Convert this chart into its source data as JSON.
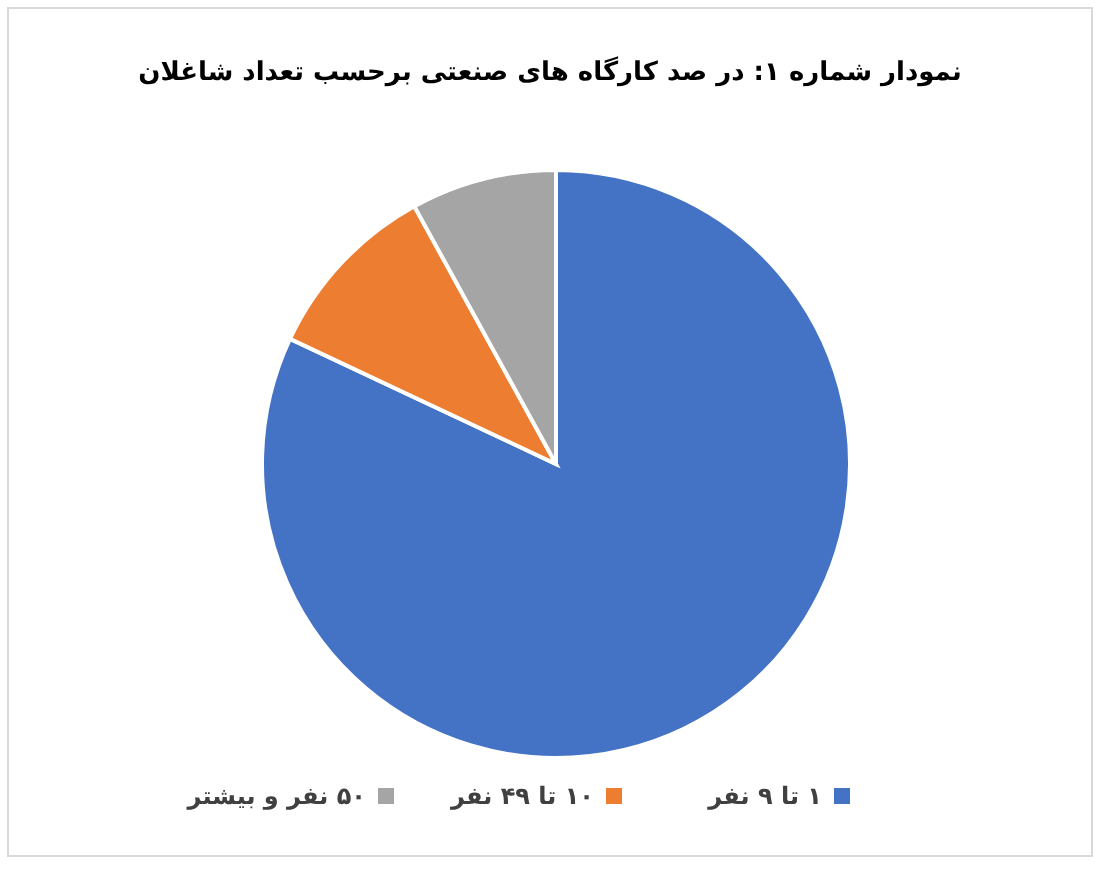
{
  "chart_data": {
    "type": "pie",
    "title": "نمودار شماره ۱: در صد کارگاه های صنعتی برحسب تعداد شاغلان",
    "categories": [
      "۱ تا ۹ نفر",
      "۱۰ تا ۴۹ نفر",
      "۵۰ نفر و بیشتر"
    ],
    "values": [
      82,
      10,
      8
    ],
    "colors": [
      "#4472c4",
      "#ed7d31",
      "#a5a5a5"
    ],
    "legend": "bottom"
  }
}
